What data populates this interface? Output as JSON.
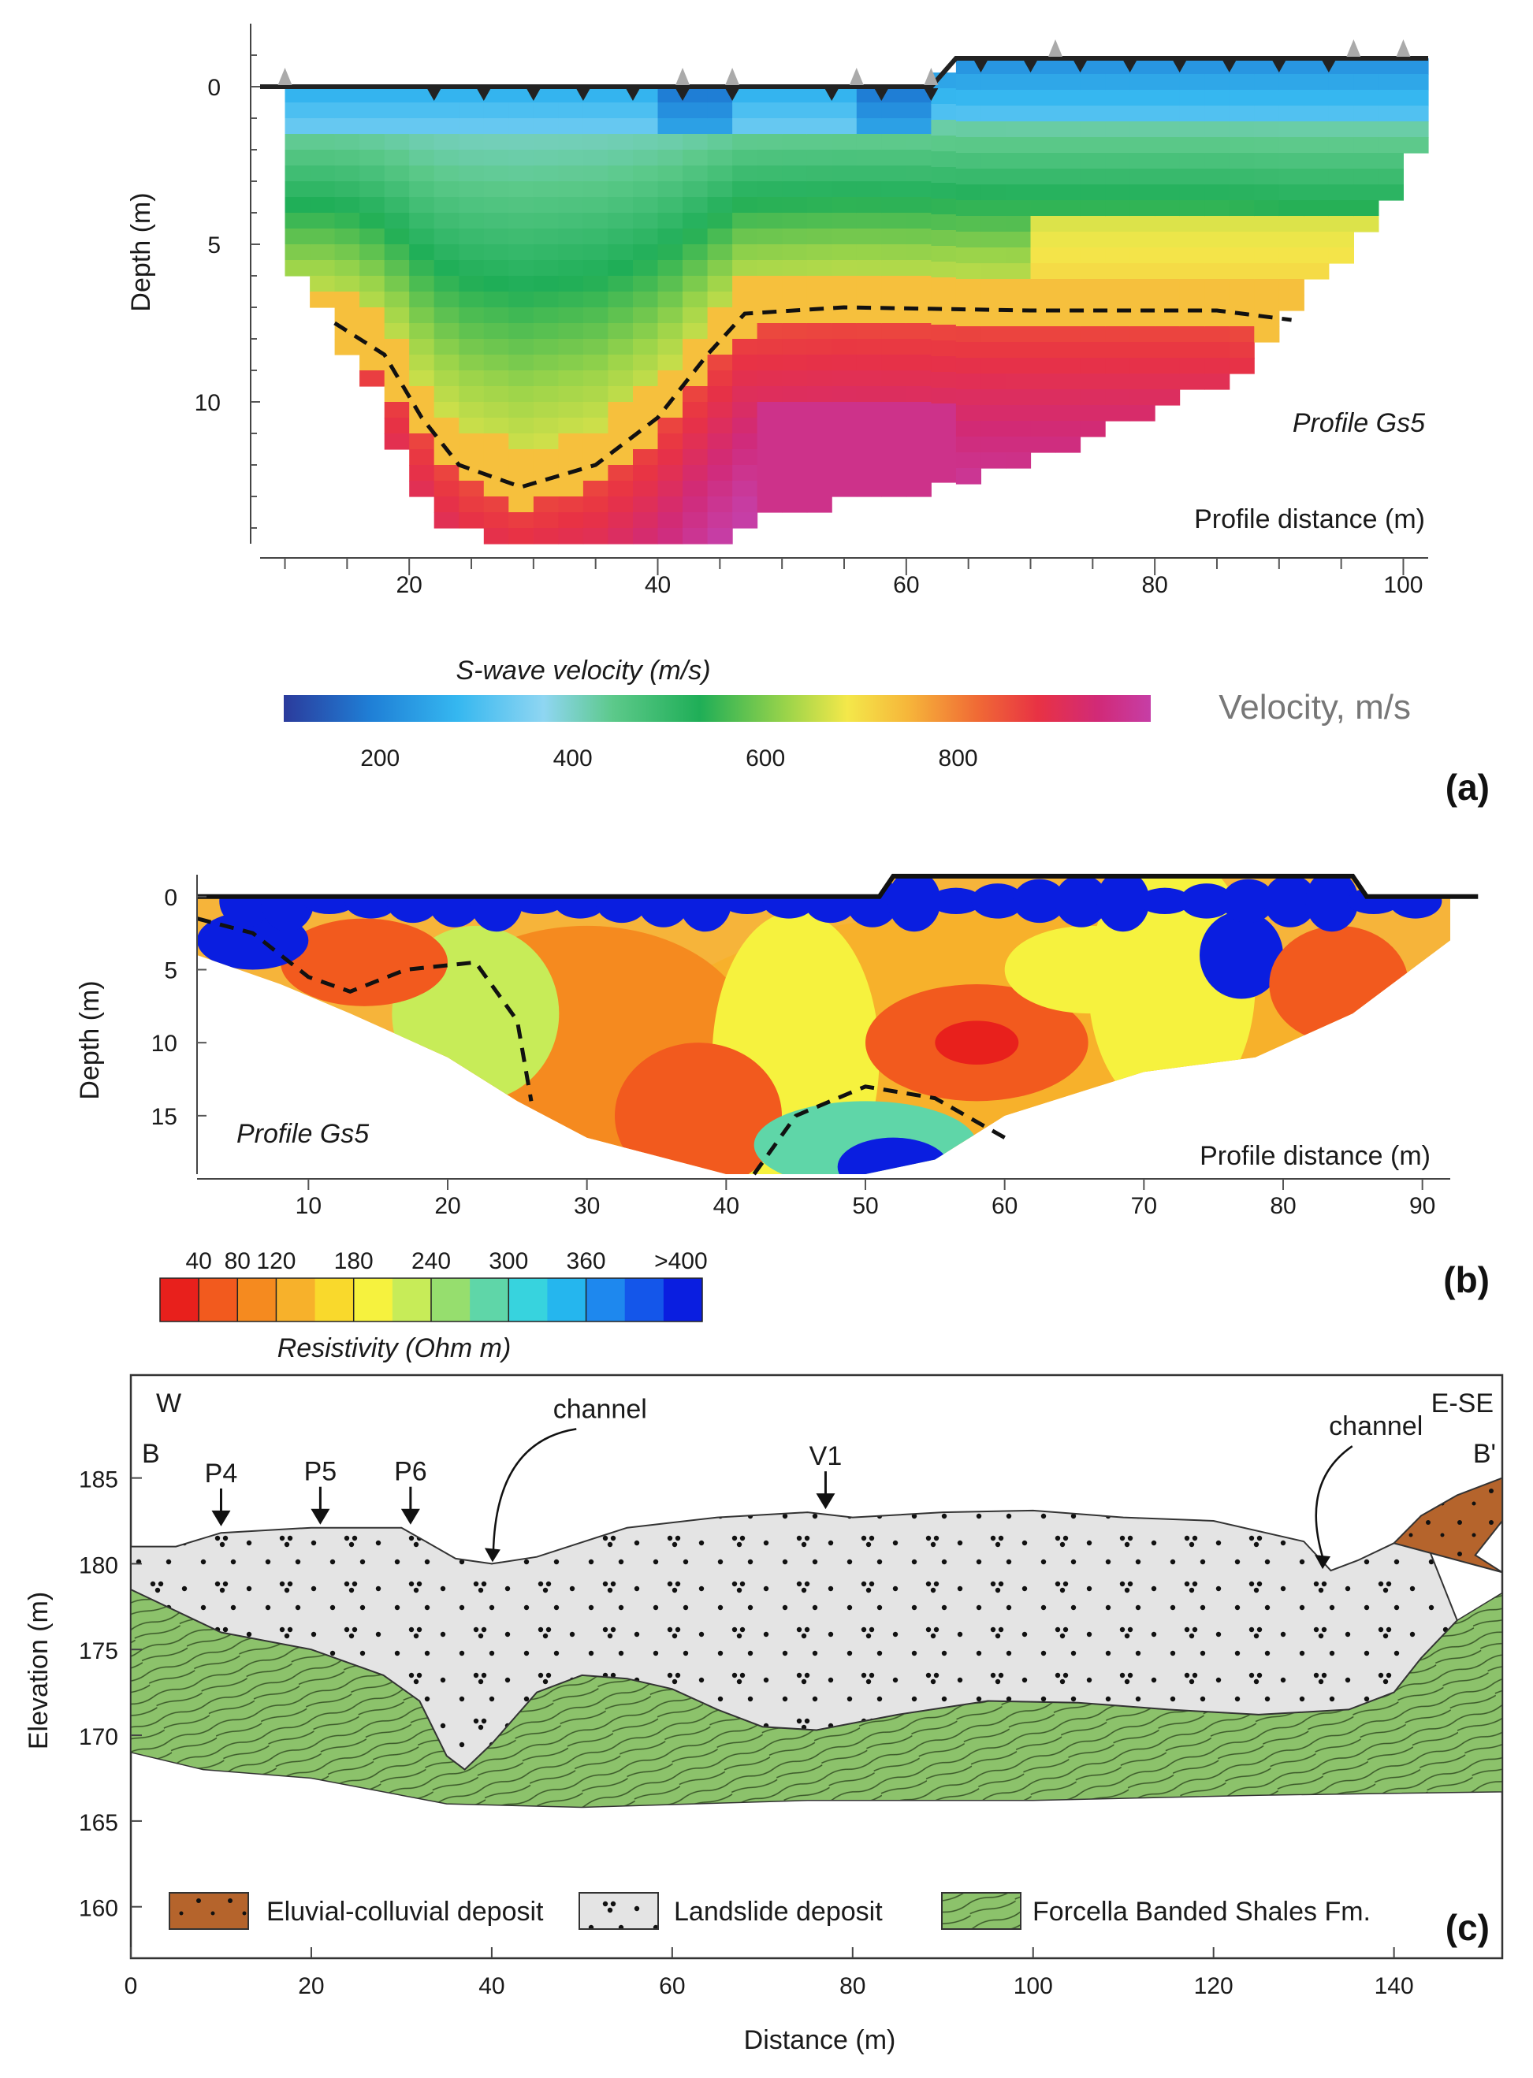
{
  "panel_a": {
    "panel_label": "(a)",
    "title": "Profile Gs5",
    "xlabel": "Profile distance (m)",
    "ylabel": "Depth (m)",
    "colorbar_title": "S-wave velocity (m/s)",
    "colorbar_unit": "Velocity, m/s",
    "colorbar_ticks": [
      "200",
      "400",
      "600",
      "800"
    ],
    "colors": [
      "#2b3b9c",
      "#1f7fd6",
      "#35b7f0",
      "#8fd6f2",
      "#5cc98a",
      "#1fae57",
      "#9bd44a",
      "#f4e84a",
      "#f6b63a",
      "#f06a35",
      "#e83244",
      "#d12a78",
      "#c63ea6"
    ],
    "chart_data": {
      "type": "heatmap",
      "title": "Profile Gs5",
      "xlabel": "Profile distance (m)",
      "ylabel": "Depth (m)",
      "x_ticks": [
        "20",
        "40",
        "60",
        "80",
        "100"
      ],
      "y_ticks": [
        "0",
        "5",
        "10"
      ],
      "xlim": [
        8,
        102
      ],
      "ylim": [
        -2,
        14.5
      ],
      "variable": "S-wave velocity (m/s)",
      "value_range": [
        100,
        1000
      ],
      "surface_profile": [
        [
          8,
          0
        ],
        [
          62,
          0
        ],
        [
          64,
          -0.9
        ],
        [
          102,
          -0.9
        ]
      ],
      "interface_dashed": [
        [
          14,
          7.5
        ],
        [
          18,
          8.5
        ],
        [
          21,
          10.5
        ],
        [
          24,
          12
        ],
        [
          29,
          12.7
        ],
        [
          35,
          12
        ],
        [
          40,
          10.5
        ],
        [
          44,
          8.5
        ],
        [
          47,
          7.2
        ],
        [
          55,
          7
        ],
        [
          70,
          7.1
        ],
        [
          85,
          7.1
        ],
        [
          91,
          7.4
        ]
      ]
    }
  },
  "panel_b": {
    "panel_label": "(b)",
    "title": "Profile Gs5",
    "xlabel": "Profile distance (m)",
    "ylabel": "Depth (m)",
    "colorbar_title": "Resistivity (Ohm m)",
    "colorbar_ticks": [
      "40",
      "80",
      "120",
      "180",
      "240",
      "300",
      "360",
      ">400"
    ],
    "colors": [
      "#e8201c",
      "#f25a1e",
      "#f58a1f",
      "#f7b12b",
      "#f9d92c",
      "#f6f23e",
      "#c7ec58",
      "#96de6e",
      "#5fd6a8",
      "#37d3de",
      "#25b6ee",
      "#1e88ee",
      "#1456ea",
      "#0a1ee0"
    ],
    "chart_data": {
      "type": "heatmap",
      "title": "Profile Gs5",
      "xlabel": "Profile distance (m)",
      "ylabel": "Depth (m)",
      "x_ticks": [
        "10",
        "20",
        "30",
        "40",
        "50",
        "60",
        "70",
        "80",
        "90"
      ],
      "y_ticks": [
        "0",
        "5",
        "10",
        "15"
      ],
      "xlim": [
        2,
        92
      ],
      "ylim": [
        -1.5,
        19
      ],
      "variable": "Resistivity (Ohm m)",
      "value_range": [
        20,
        400
      ],
      "interface_dashed_left": [
        [
          2,
          1.5
        ],
        [
          6,
          2.5
        ],
        [
          10,
          5.5
        ],
        [
          13,
          6.5
        ],
        [
          17,
          5
        ],
        [
          22,
          4.5
        ],
        [
          25,
          8.5
        ],
        [
          26,
          14
        ]
      ],
      "interface_dashed_right": [
        [
          42,
          19
        ],
        [
          45,
          15
        ],
        [
          50,
          13
        ],
        [
          55,
          13.8
        ],
        [
          60,
          16.5
        ]
      ]
    }
  },
  "panel_c": {
    "panel_label": "(c)",
    "xlabel": "Distance (m)",
    "ylabel": "Elevation (m)",
    "left_label": "W",
    "right_label": "E-SE",
    "section_start": "B",
    "section_end": "B'",
    "markers": [
      "P4",
      "P5",
      "P6",
      "V1"
    ],
    "channel_label_1": "channel",
    "channel_label_2": "channel",
    "legend": [
      "Eluvial-colluvial deposit",
      "Landslide deposit",
      "Forcella Banded Shales Fm."
    ],
    "colors": {
      "eluvial": "#b5642c",
      "landslide": "#e4e4e4",
      "shales": "#8cc26b"
    },
    "chart_data": {
      "type": "area",
      "xlabel": "Distance (m)",
      "ylabel": "Elevation (m)",
      "x_ticks": [
        "0",
        "20",
        "40",
        "60",
        "80",
        "100",
        "120",
        "140"
      ],
      "y_ticks": [
        "160",
        "165",
        "170",
        "175",
        "180",
        "185"
      ],
      "xlim": [
        0,
        152
      ],
      "ylim": [
        157,
        191
      ],
      "topography": [
        [
          0,
          181
        ],
        [
          5,
          181
        ],
        [
          10,
          181.8
        ],
        [
          20,
          182.1
        ],
        [
          30,
          182.1
        ],
        [
          33,
          181.2
        ],
        [
          36,
          180.3
        ],
        [
          40,
          180
        ],
        [
          45,
          180.4
        ],
        [
          55,
          182.1
        ],
        [
          65,
          182.7
        ],
        [
          75,
          183
        ],
        [
          80,
          182.7
        ],
        [
          90,
          183
        ],
        [
          100,
          183.1
        ],
        [
          110,
          182.7
        ],
        [
          120,
          182.5
        ],
        [
          130,
          181.3
        ],
        [
          133,
          179.6
        ],
        [
          136,
          180.2
        ],
        [
          140,
          181.2
        ],
        [
          143,
          182
        ],
        [
          146,
          183.5
        ],
        [
          149,
          185
        ],
        [
          152,
          186
        ]
      ],
      "landslide_base": [
        [
          0,
          178.5
        ],
        [
          10,
          176
        ],
        [
          20,
          175
        ],
        [
          28,
          173.5
        ],
        [
          32,
          172
        ],
        [
          35,
          168.8
        ],
        [
          37,
          168
        ],
        [
          40,
          169.5
        ],
        [
          45,
          172.5
        ],
        [
          50,
          173.5
        ],
        [
          55,
          173.3
        ],
        [
          60,
          172.7
        ],
        [
          65,
          171.5
        ],
        [
          70,
          170.5
        ],
        [
          76,
          170.3
        ],
        [
          85,
          171.2
        ],
        [
          95,
          172
        ],
        [
          105,
          171.9
        ],
        [
          115,
          171.5
        ],
        [
          125,
          171.2
        ],
        [
          135,
          171.5
        ],
        [
          140,
          172.5
        ],
        [
          143,
          174.5
        ],
        [
          147,
          176.7
        ],
        [
          152,
          178.3
        ]
      ],
      "shales_base": [
        [
          0,
          169
        ],
        [
          8,
          168
        ],
        [
          20,
          167.5
        ],
        [
          35,
          166
        ],
        [
          50,
          165.8
        ],
        [
          75,
          166.2
        ],
        [
          100,
          166.2
        ],
        [
          125,
          166.5
        ],
        [
          152,
          166.7
        ]
      ],
      "eluvial_polygon": [
        [
          140,
          181.2
        ],
        [
          143,
          182.8
        ],
        [
          147,
          184
        ],
        [
          152,
          185
        ],
        [
          152,
          182.5
        ],
        [
          149,
          180.5
        ],
        [
          152,
          179.5
        ]
      ],
      "marker_positions": [
        [
          10,
          182
        ],
        [
          21,
          182.1
        ],
        [
          31,
          182.1
        ],
        [
          77,
          183
        ]
      ],
      "channel_positions": [
        [
          40,
          180
        ],
        [
          132,
          179.6
        ]
      ]
    }
  }
}
